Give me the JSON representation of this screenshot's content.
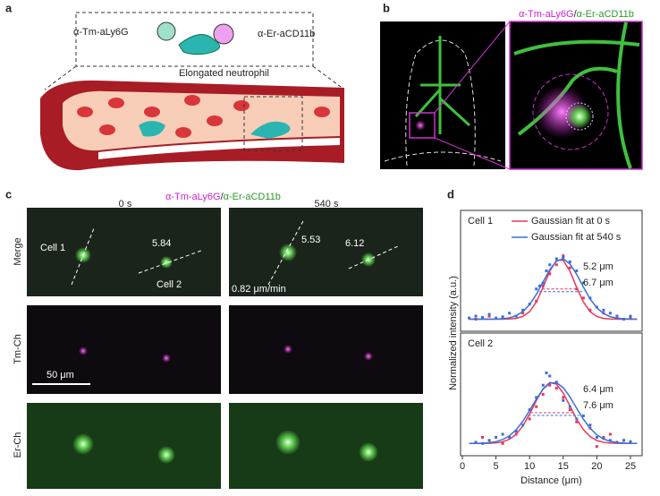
{
  "panels": {
    "a": {
      "label": "a",
      "probe_1": "α-Tm-aLy6G",
      "probe_2": "α-Er-aCD11b",
      "caption": "Elongated neutrophil"
    },
    "b": {
      "label": "b",
      "legend_1": "α-Tm-aLy6G",
      "legend_sep": "/",
      "legend_2": "α-Er-aCD11b"
    },
    "c": {
      "label": "c",
      "legend_1": "α-Tm-aLy6G",
      "legend_sep": "/",
      "legend_2": "α-Er-aCD11b",
      "col_1": "0 s",
      "col_2": "540 s",
      "row_1": "Merge",
      "row_2": "Tm-Ch",
      "row_3": "Er-Ch",
      "cell_1": "Cell 1",
      "cell_2": "Cell 2",
      "len_1a": "5.84",
      "len_1b": "5.53",
      "len_2b": "6.12",
      "speed": "0.82 μm/min",
      "scale": "50 μm"
    },
    "d": {
      "label": "d"
    }
  },
  "chart_data": [
    {
      "type": "line",
      "title": "Cell 1",
      "ylabel": "Normalized intensity (a.u.)",
      "xlim": [
        0,
        27
      ],
      "ylim": [
        -0.2,
        1.8
      ],
      "x": [
        1,
        2,
        3,
        4,
        5,
        6,
        7,
        8,
        9,
        10,
        11,
        12,
        13,
        14,
        15,
        16,
        17,
        18,
        19,
        20,
        21,
        22,
        23,
        24,
        25,
        26
      ],
      "legend": "top-right",
      "series": [
        {
          "name": "Gaussian fit at 0 s",
          "color": "#e8375a",
          "center": 14.5,
          "fwhm": 5.2,
          "fwhm_label": "5.2 μm",
          "values": [
            0,
            0,
            0,
            0,
            0,
            0,
            0.003,
            0.013,
            0.045,
            0.125,
            0.285,
            0.527,
            0.794,
            0.975,
            0.975,
            0.794,
            0.527,
            0.285,
            0.125,
            0.045,
            0.013,
            0.003,
            0,
            0,
            0,
            0
          ],
          "points": {
            "x": [
              2,
              4,
              6,
              9,
              11,
              12,
              13,
              14,
              15,
              16,
              17,
              18,
              19,
              21,
              23,
              25
            ],
            "values": [
              0,
              0.05,
              0.02,
              0.1,
              0.3,
              0.55,
              0.75,
              0.9,
              1.05,
              0.85,
              0.5,
              0.35,
              0.15,
              0.1,
              0.05,
              0.02
            ]
          }
        },
        {
          "name": "Gaussian fit at 540 s",
          "color": "#3b6fd8",
          "center": 14.8,
          "fwhm": 6.7,
          "fwhm_label": "6.7 μm",
          "values": [
            0,
            0,
            0,
            0,
            0.002,
            0.008,
            0.023,
            0.057,
            0.125,
            0.241,
            0.41,
            0.616,
            0.819,
            0.961,
            0.998,
            0.915,
            0.742,
            0.531,
            0.336,
            0.188,
            0.093,
            0.041,
            0.016,
            0.005,
            0.001,
            0
          ],
          "points": {
            "x": [
              1,
              2,
              3,
              4,
              5,
              6,
              7,
              8,
              9,
              10,
              11,
              11.5,
              12,
              12.5,
              13,
              14,
              15,
              16,
              17,
              18,
              19,
              20,
              21,
              22,
              23,
              24,
              25
            ],
            "values": [
              0.02,
              0.05,
              0.03,
              0.08,
              0.02,
              0.04,
              0.1,
              0.05,
              0.15,
              0.25,
              0.5,
              0.55,
              0.6,
              0.8,
              0.9,
              1,
              1.02,
              0.95,
              0.8,
              0.6,
              0.35,
              0.2,
              0.15,
              0.1,
              0.05,
              0,
              0.05
            ]
          }
        }
      ]
    },
    {
      "type": "line",
      "title": "Cell 2",
      "xlabel": "Distance (μm)",
      "xlim": [
        0,
        27
      ],
      "xticks": [
        0,
        5,
        10,
        15,
        20,
        25
      ],
      "ylim": [
        -0.2,
        1.8
      ],
      "x": [
        1,
        2,
        3,
        4,
        5,
        6,
        7,
        8,
        9,
        10,
        11,
        12,
        13,
        14,
        15,
        16,
        17,
        18,
        19,
        20,
        21,
        22,
        23,
        24,
        25,
        26
      ],
      "series": [
        {
          "color": "#e8375a",
          "center": 13.3,
          "fwhm": 6.4,
          "fwhm_label": "6.4 μm",
          "values": [
            0,
            0,
            0.001,
            0.003,
            0.009,
            0.027,
            0.068,
            0.149,
            0.286,
            0.479,
            0.699,
            0.892,
            0.994,
            0.967,
            0.822,
            0.611,
            0.396,
            0.224,
            0.111,
            0.048,
            0.018,
            0.006,
            0.002,
            0,
            0,
            0
          ],
          "points": {
            "x": [
              3,
              4,
              6,
              8,
              10,
              11,
              12,
              13,
              14,
              15,
              16,
              17,
              19,
              20,
              21,
              22,
              24
            ],
            "values": [
              0.1,
              0.05,
              0,
              0.15,
              0.4,
              0.6,
              0.8,
              0.95,
              0.9,
              0.75,
              0.55,
              0.35,
              0.25,
              -0.05,
              0.1,
              0.15,
              0.05
            ]
          }
        },
        {
          "color": "#3b6fd8",
          "center": 13.6,
          "fwhm": 7.6,
          "fwhm_label": "7.6 μm",
          "values": [
            0,
            0.002,
            0.005,
            0.012,
            0.029,
            0.063,
            0.124,
            0.222,
            0.362,
            0.537,
            0.723,
            0.884,
            0.983,
            0.992,
            0.91,
            0.759,
            0.574,
            0.395,
            0.247,
            0.14,
            0.072,
            0.034,
            0.014,
            0.006,
            0.002,
            0.001
          ],
          "points": {
            "x": [
              2,
              3,
              4,
              5,
              6,
              7,
              8,
              9,
              10,
              11,
              12,
              12.5,
              13,
              14,
              15,
              16,
              17,
              18,
              19,
              20,
              21,
              22,
              23,
              24,
              25
            ],
            "values": [
              0.02,
              0,
              0.05,
              0.1,
              0.15,
              0.1,
              0.2,
              0.3,
              0.55,
              0.75,
              0.95,
              1.15,
              1.1,
              1,
              0.7,
              0.6,
              0.4,
              0.45,
              0.3,
              0.1,
              0.08,
              0.05,
              0.02,
              0.05,
              0.03
            ]
          }
        }
      ]
    }
  ]
}
